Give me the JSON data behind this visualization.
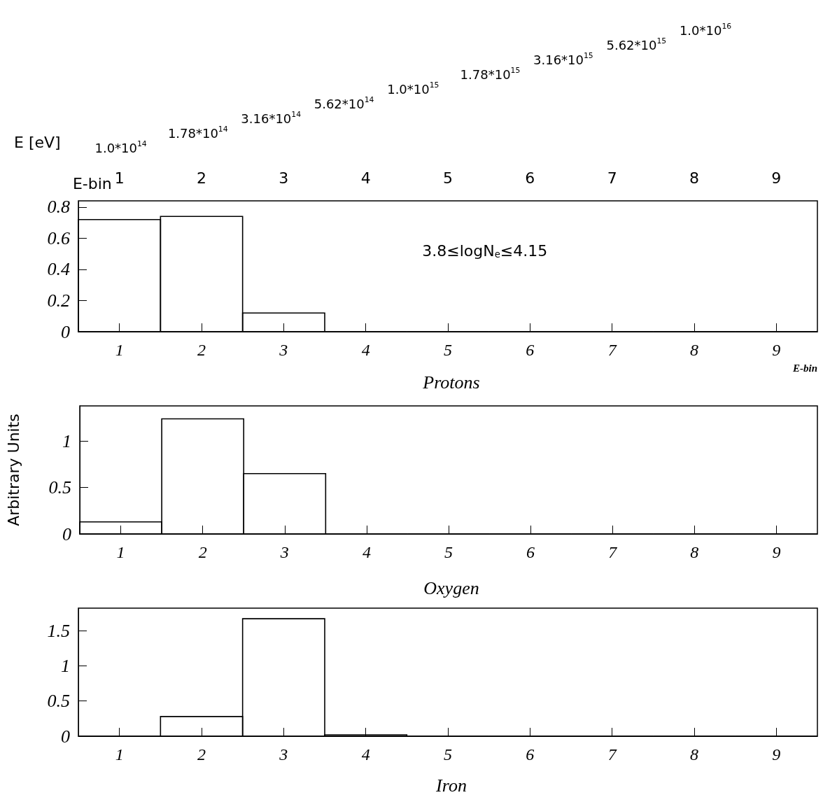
{
  "chart_data": [
    {
      "type": "histogram",
      "title": "Protons",
      "xlabel": "E-bin",
      "bins": [
        0.5,
        1.5,
        2.5,
        3.5,
        4.5,
        5.5,
        6.5,
        7.5,
        8.5,
        9.5
      ],
      "values": [
        0.72,
        0.74,
        0.12,
        0,
        0,
        0,
        0,
        0,
        0
      ],
      "color": "#000000",
      "xlim": [
        0.5,
        9.5
      ],
      "xticks": [
        1,
        2,
        3,
        4,
        5,
        6,
        7,
        8,
        9
      ],
      "ylim": [
        0,
        0.84
      ],
      "yticks": [
        0,
        0.2,
        0.4,
        0.6,
        0.8
      ],
      "x2label": "E-bin",
      "x2lim": [
        0.5,
        9.5
      ],
      "x2ticks": [
        1,
        2,
        3,
        4,
        5,
        6,
        7,
        8,
        9
      ],
      "subtitle": "3.8≤logN$_{e}$≤4.15",
      "annotations": [
        "E [eV]",
        "1.0*10$^{14}$",
        "1.78*10$^{14}$",
        "3.16*10$^{14}$",
        "5.62*10$^{14}$",
        "1.0*10$^{15}$",
        "1.78*10$^{15}$",
        "3.16*10$^{15}$",
        "5.62*10$^{15}$",
        "1.0*10$^{16}$"
      ]
    },
    {
      "type": "histogram",
      "title": "Oxygen",
      "ylabel": "Arbitrary Units",
      "bins": [
        0.5,
        1.5,
        2.5,
        3.5,
        4.5,
        5.5,
        6.5,
        7.5,
        8.5,
        9.5
      ],
      "values": [
        0.13,
        1.24,
        0.65,
        0,
        0,
        0,
        0,
        0,
        0
      ],
      "color": "#000000",
      "xlim": [
        0.5,
        9.5
      ],
      "xticks": [
        1,
        2,
        3,
        4,
        5,
        6,
        7,
        8,
        9
      ],
      "ylim": [
        0,
        1.38
      ],
      "yticks": [
        0,
        0.5,
        1
      ]
    },
    {
      "type": "histogram",
      "title": "Iron",
      "bins": [
        0.5,
        1.5,
        2.5,
        3.5,
        4.5,
        5.5,
        6.5,
        7.5,
        8.5,
        9.5
      ],
      "values": [
        0,
        0.28,
        1.67,
        0.02,
        0,
        0,
        0,
        0,
        0
      ],
      "color": "#000000",
      "xlim": [
        0.5,
        9.5
      ],
      "xticks": [
        1,
        2,
        3,
        4,
        5,
        6,
        7,
        8,
        9
      ],
      "ylim": [
        0,
        1.82
      ],
      "yticks": [
        0,
        0.5,
        1,
        1.5
      ]
    }
  ]
}
